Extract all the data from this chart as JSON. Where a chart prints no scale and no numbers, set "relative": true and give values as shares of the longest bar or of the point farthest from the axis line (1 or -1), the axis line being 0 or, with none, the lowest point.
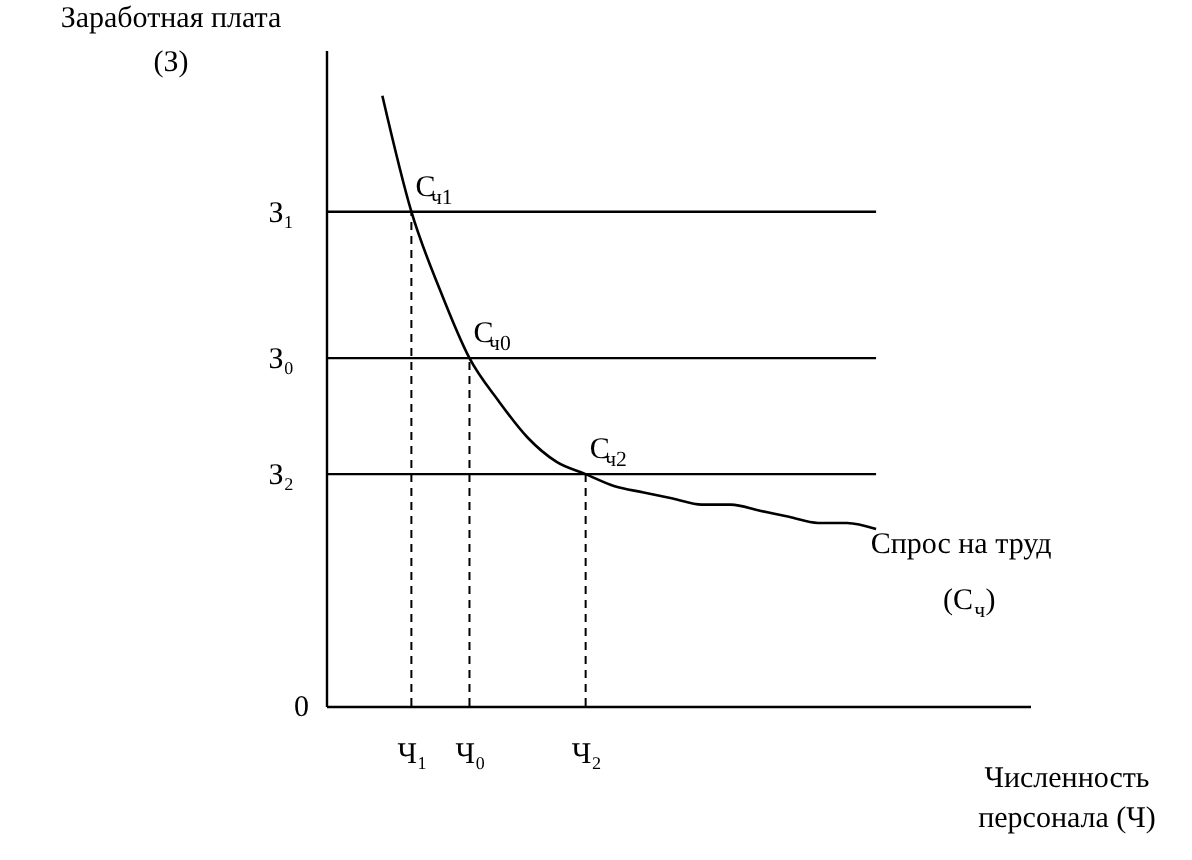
{
  "chart_data": {
    "type": "line",
    "relative": true,
    "xlabel": "Численность\nперсонала (Ч)",
    "ylabel": "Заработная плата\n(З)",
    "categories": [
      null,
      "Ч₁",
      null,
      "Ч₀",
      null,
      null,
      null,
      "Ч₂",
      null,
      null,
      null,
      null,
      null,
      null,
      null,
      null,
      null,
      null
    ],
    "series": [
      {
        "name": "Спрос на труд\n(С$_{ч}$)",
        "color": "#000000",
        "values": [
          1,
          0.81,
          0.68,
          0.57,
          0.5,
          0.44,
          0.4,
          0.38,
          0.36,
          0.35,
          0.34,
          0.33,
          0.33,
          0.32,
          0.31,
          0.3,
          0.3,
          0.29
        ]
      }
    ],
    "ref_lines": [
      {
        "axis": "y",
        "value": 0.81,
        "label": "З₁",
        "line_style": "solid"
      },
      {
        "axis": "y",
        "value": 0.57,
        "label": "З₀",
        "line_style": "solid"
      },
      {
        "axis": "y",
        "value": 0.38,
        "label": "З₂",
        "line_style": "solid"
      },
      {
        "axis": "x",
        "value": "Ч₁",
        "line_style": "dashed"
      },
      {
        "axis": "x",
        "value": "Ч₀",
        "line_style": "dashed"
      },
      {
        "axis": "x",
        "value": "Ч₂",
        "line_style": "dashed"
      }
    ],
    "annotations": [
      {
        "text": "С$_{ч1}$",
        "x": "Ч₁",
        "y": 0.81
      },
      {
        "text": "С$_{ч0}$",
        "x": "Ч₀",
        "y": 0.57
      },
      {
        "text": "С$_{ч2}$",
        "x": "Ч₂",
        "y": 0.38
      },
      "0"
    ],
    "legend": false,
    "grid": false,
    "marker": "none",
    "line_style": "solid"
  }
}
